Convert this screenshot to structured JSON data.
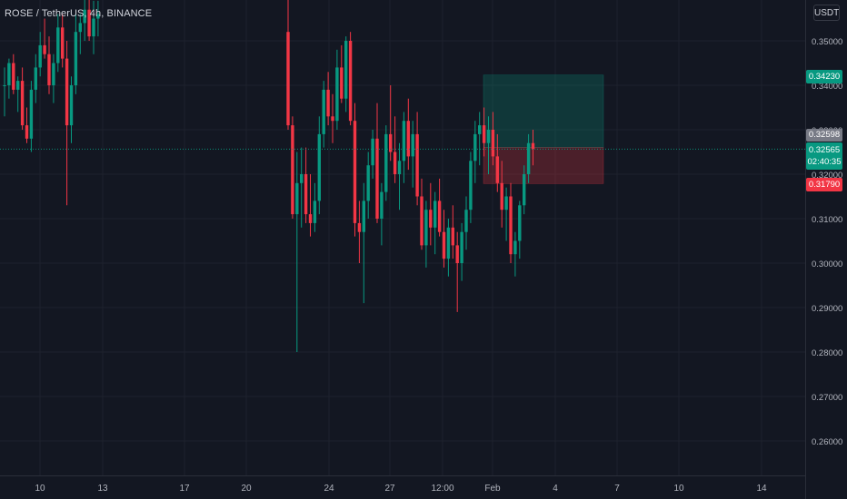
{
  "header": {
    "title": "ROSE / TetherUS, 4h, BINANCE",
    "unit": "USDT"
  },
  "price_tags": {
    "target": "0.34230",
    "gray": "0.32598",
    "last": "0.32565",
    "countdown": "02:40:35",
    "stop": "0.31790"
  },
  "colors": {
    "background": "#131722",
    "grid": "#1e222d",
    "up": "#089981",
    "down": "#f23645",
    "axis_text": "#b2b5be"
  },
  "chart_data": {
    "type": "candlestick",
    "y_ticks": [
      "0.35000",
      "0.34000",
      "0.33000",
      "0.32000",
      "0.31000",
      "0.30000",
      "0.29000",
      "0.28000",
      "0.27000",
      "0.26000"
    ],
    "y_tick_values": [
      0.35,
      0.34,
      0.33,
      0.32,
      0.31,
      0.3,
      0.29,
      0.28,
      0.27,
      0.26
    ],
    "x_ticks": [
      "10",
      "13",
      "17",
      "20",
      "24",
      "27",
      "12:00",
      "Feb",
      "4",
      "7",
      "10",
      "14"
    ],
    "position_tool": {
      "entry": 0.32598,
      "target": 0.3423,
      "stop": 0.3179
    },
    "last_price": 0.32565,
    "candles": [
      [
        0.34,
        0.344,
        0.333,
        0.34
      ],
      [
        0.34,
        0.346,
        0.337,
        0.345
      ],
      [
        0.345,
        0.347,
        0.338,
        0.339
      ],
      [
        0.339,
        0.342,
        0.334,
        0.341
      ],
      [
        0.341,
        0.344,
        0.33,
        0.331
      ],
      [
        0.331,
        0.335,
        0.327,
        0.328
      ],
      [
        0.328,
        0.341,
        0.325,
        0.339
      ],
      [
        0.339,
        0.347,
        0.336,
        0.344
      ],
      [
        0.344,
        0.352,
        0.342,
        0.349
      ],
      [
        0.349,
        0.355,
        0.346,
        0.347
      ],
      [
        0.347,
        0.351,
        0.338,
        0.34
      ],
      [
        0.34,
        0.347,
        0.336,
        0.345
      ],
      [
        0.345,
        0.356,
        0.343,
        0.353
      ],
      [
        0.353,
        0.356,
        0.344,
        0.346
      ],
      [
        0.346,
        0.35,
        0.313,
        0.331
      ],
      [
        0.331,
        0.342,
        0.327,
        0.34
      ],
      [
        0.34,
        0.356,
        0.338,
        0.352
      ],
      [
        0.352,
        0.356,
        0.347,
        0.354
      ],
      [
        0.354,
        0.36,
        0.35,
        0.357
      ],
      [
        0.357,
        0.36,
        0.35,
        0.351
      ],
      [
        0.351,
        0.359,
        0.347,
        0.355
      ],
      [
        0.355,
        0.359,
        0.351,
        0.356
      ],
      [
        0.352,
        0.36,
        0.33,
        0.331
      ],
      [
        0.331,
        0.333,
        0.31,
        0.311
      ],
      [
        0.311,
        0.325,
        0.28,
        0.318
      ],
      [
        0.318,
        0.326,
        0.308,
        0.32
      ],
      [
        0.32,
        0.326,
        0.309,
        0.311
      ],
      [
        0.311,
        0.32,
        0.306,
        0.309
      ],
      [
        0.309,
        0.318,
        0.307,
        0.314
      ],
      [
        0.314,
        0.333,
        0.311,
        0.329
      ],
      [
        0.329,
        0.341,
        0.326,
        0.339
      ],
      [
        0.339,
        0.343,
        0.331,
        0.333
      ],
      [
        0.333,
        0.338,
        0.327,
        0.332
      ],
      [
        0.332,
        0.348,
        0.33,
        0.344
      ],
      [
        0.344,
        0.349,
        0.336,
        0.337
      ],
      [
        0.337,
        0.351,
        0.334,
        0.35
      ],
      [
        0.35,
        0.352,
        0.331,
        0.332
      ],
      [
        0.332,
        0.336,
        0.306,
        0.309
      ],
      [
        0.309,
        0.314,
        0.3,
        0.307
      ],
      [
        0.307,
        0.318,
        0.291,
        0.314
      ],
      [
        0.314,
        0.325,
        0.31,
        0.322
      ],
      [
        0.322,
        0.33,
        0.319,
        0.328
      ],
      [
        0.328,
        0.336,
        0.309,
        0.31
      ],
      [
        0.31,
        0.318,
        0.304,
        0.316
      ],
      [
        0.316,
        0.331,
        0.314,
        0.329
      ],
      [
        0.329,
        0.34,
        0.323,
        0.325
      ],
      [
        0.325,
        0.333,
        0.318,
        0.32
      ],
      [
        0.32,
        0.327,
        0.312,
        0.323
      ],
      [
        0.323,
        0.334,
        0.318,
        0.332
      ],
      [
        0.332,
        0.337,
        0.321,
        0.324
      ],
      [
        0.324,
        0.332,
        0.317,
        0.329
      ],
      [
        0.329,
        0.334,
        0.313,
        0.315
      ],
      [
        0.315,
        0.319,
        0.303,
        0.304
      ],
      [
        0.304,
        0.314,
        0.299,
        0.312
      ],
      [
        0.312,
        0.318,
        0.304,
        0.308
      ],
      [
        0.308,
        0.316,
        0.302,
        0.314
      ],
      [
        0.314,
        0.319,
        0.306,
        0.307
      ],
      [
        0.307,
        0.312,
        0.299,
        0.301
      ],
      [
        0.301,
        0.31,
        0.297,
        0.308
      ],
      [
        0.308,
        0.313,
        0.301,
        0.304
      ],
      [
        0.304,
        0.307,
        0.289,
        0.3
      ],
      [
        0.3,
        0.309,
        0.296,
        0.307
      ],
      [
        0.307,
        0.315,
        0.303,
        0.312
      ],
      [
        0.312,
        0.325,
        0.309,
        0.323
      ],
      [
        0.323,
        0.332,
        0.318,
        0.329
      ],
      [
        0.329,
        0.334,
        0.322,
        0.331
      ],
      [
        0.331,
        0.335,
        0.324,
        0.327
      ],
      [
        0.327,
        0.333,
        0.32,
        0.33
      ],
      [
        0.33,
        0.334,
        0.322,
        0.324
      ],
      [
        0.324,
        0.329,
        0.316,
        0.318
      ],
      [
        0.318,
        0.323,
        0.308,
        0.312
      ],
      [
        0.312,
        0.317,
        0.305,
        0.315
      ],
      [
        0.315,
        0.318,
        0.3,
        0.302
      ],
      [
        0.302,
        0.307,
        0.297,
        0.305
      ],
      [
        0.305,
        0.314,
        0.301,
        0.313
      ],
      [
        0.313,
        0.322,
        0.311,
        0.32
      ],
      [
        0.32,
        0.329,
        0.318,
        0.327
      ],
      [
        0.327,
        0.33,
        0.322,
        0.3257
      ]
    ]
  }
}
